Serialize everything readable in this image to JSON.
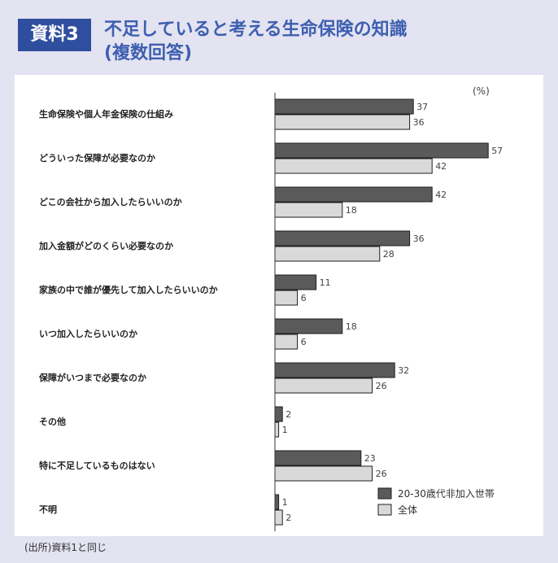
{
  "header": {
    "badge": "資料3",
    "title_line1": "不足していると考える生命保険の知識",
    "title_line2": "(複数回答)"
  },
  "source_note": "(出所)資料1と同じ",
  "colors": {
    "header_badge_bg": "#2f4f9e",
    "title_text": "#3e5fb0",
    "page_bg": "#e3e3f1",
    "series_dark": "#5a5a5a",
    "series_light": "#d9d9d9"
  },
  "chart_data": {
    "type": "bar",
    "orientation": "horizontal",
    "unit_label": "(%)",
    "categories": [
      "生命保険や個人年金保険の仕組み",
      "どういった保障が必要なのか",
      "どこの会社から加入したらいいのか",
      "加入金額がどのくらい必要なのか",
      "家族の中で誰が優先して加入したらいいのか",
      "いつ加入したらいいのか",
      "保障がいつまで必要なのか",
      "その他",
      "特に不足しているものはない",
      "不明"
    ],
    "series": [
      {
        "name": "20-30歳代非加入世帯",
        "color": "#5a5a5a",
        "values": [
          37,
          57,
          42,
          36,
          11,
          18,
          32,
          2,
          23,
          1
        ]
      },
      {
        "name": "全体",
        "color": "#d9d9d9",
        "values": [
          36,
          42,
          18,
          28,
          6,
          6,
          26,
          1,
          26,
          2
        ]
      }
    ],
    "legend_position": "bottom-right",
    "grid": false
  }
}
